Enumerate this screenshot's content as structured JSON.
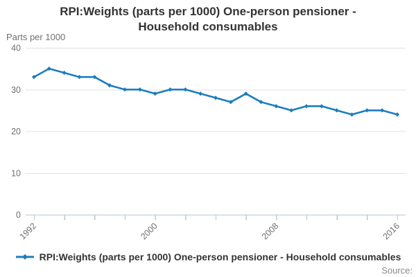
{
  "title": {
    "text": "RPI:Weights (parts per 1000) One-person pensioner - Household consumables"
  },
  "axis": {
    "unit_label": "Parts per 1000",
    "y_tick_labels": [
      "0",
      "10",
      "20",
      "30",
      "40"
    ],
    "x_tick_labels": [
      "1992",
      "2000",
      "2008",
      "2016"
    ]
  },
  "legend": {
    "label": "RPI:Weights (parts per 1000) One-person pensioner - Household consumables",
    "marker": "line-with-diamond-icon"
  },
  "source_label": "Source:",
  "colors": {
    "series": "#1d7dbe",
    "gridline": "#e1e1e1",
    "axis_line": "#bac8d8",
    "tick_text": "#6f6f6f",
    "title_text": "#333333",
    "source_text": "#8a8a8a"
  },
  "chart_data": {
    "type": "line",
    "title": "RPI:Weights (parts per 1000) One-person pensioner - Household consumables",
    "ylabel": "Parts per 1000",
    "xlabel": "",
    "ylim": [
      0,
      40
    ],
    "yticks": [
      0,
      10,
      20,
      30,
      40
    ],
    "xlim": [
      1992,
      2016
    ],
    "xtick_step_years": 2,
    "xtick_labeled_years": [
      1992,
      2000,
      2008,
      2016
    ],
    "grid": "horizontal",
    "legend_position": "bottom",
    "marker_shape": "diamond",
    "x": [
      1992,
      1993,
      1994,
      1995,
      1996,
      1997,
      1998,
      1999,
      2000,
      2001,
      2002,
      2003,
      2004,
      2005,
      2006,
      2007,
      2008,
      2009,
      2010,
      2011,
      2012,
      2013,
      2014,
      2015,
      2016
    ],
    "series": [
      {
        "name": "RPI:Weights (parts per 1000) One-person pensioner - Household consumables",
        "values": [
          33,
          35,
          34,
          33,
          33,
          31,
          30,
          30,
          29,
          30,
          30,
          29,
          28,
          27,
          29,
          27,
          26,
          25,
          26,
          26,
          25,
          24,
          25,
          25,
          24
        ]
      }
    ]
  }
}
